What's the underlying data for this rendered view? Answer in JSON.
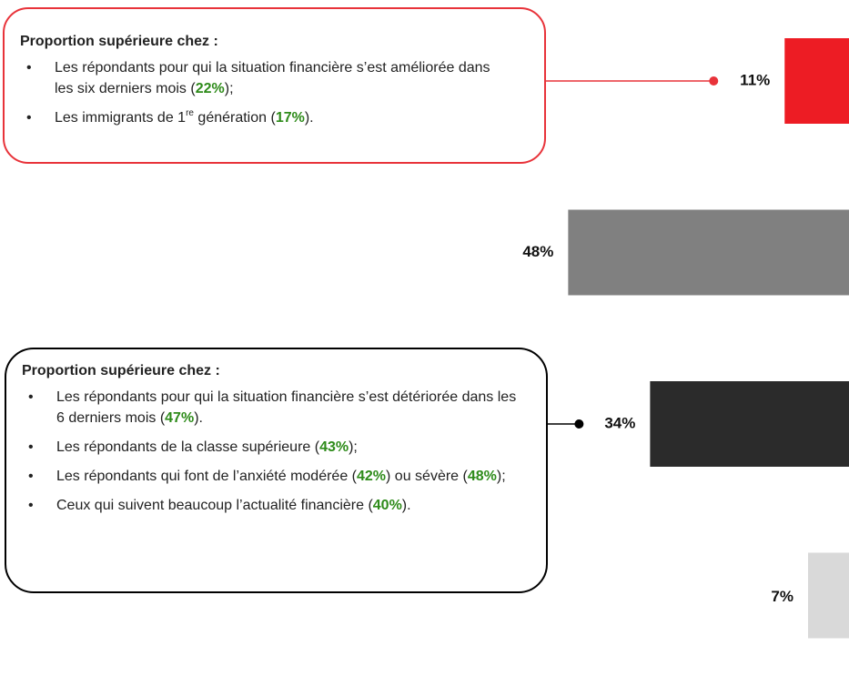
{
  "chart_data": {
    "type": "bar",
    "orientation": "horizontal-from-right",
    "values": [
      11,
      48,
      34,
      7
    ],
    "value_labels": [
      "11%",
      "48%",
      "34%",
      "7%"
    ],
    "colors": [
      "#ed1c24",
      "#808080",
      "#2b2b2b",
      "#d9d9d9"
    ],
    "annotations": [
      {
        "title": "Proportion supérieure chez :",
        "color": "#e8333a",
        "items": [
          [
            {
              "text": "Les répondants pour qui la situation financière s’est améliorée dans les six derniers mois ("
            },
            {
              "text": "22%",
              "style": "highlight"
            },
            {
              "text": ");"
            }
          ],
          [
            {
              "text": "Les immigrants de 1"
            },
            {
              "text": "re",
              "style": "sup"
            },
            {
              "text": " génération ("
            },
            {
              "text": "17%",
              "style": "highlight"
            },
            {
              "text": ")."
            }
          ]
        ]
      },
      {
        "title": "Proportion supérieure chez :",
        "color": "#000000",
        "items": [
          [
            {
              "text": "Les répondants pour qui la situation financière s’est détériorée dans les 6 derniers mois ("
            },
            {
              "text": "47%",
              "style": "highlight"
            },
            {
              "text": ")."
            }
          ],
          [
            {
              "text": "Les répondants de la classe supérieure ("
            },
            {
              "text": "43%",
              "style": "highlight"
            },
            {
              "text": ");"
            }
          ],
          [
            {
              "text": "Les répondants qui font de l’anxiété modérée ("
            },
            {
              "text": "42%",
              "style": "highlight"
            },
            {
              "text": ") ou sévère ("
            },
            {
              "text": "48%",
              "style": "highlight"
            },
            {
              "text": ");"
            }
          ],
          [
            {
              "text": "Ceux qui suivent beaucoup l’actualité financière ("
            },
            {
              "text": "40%",
              "style": "highlight"
            },
            {
              "text": ")."
            }
          ]
        ]
      }
    ]
  }
}
